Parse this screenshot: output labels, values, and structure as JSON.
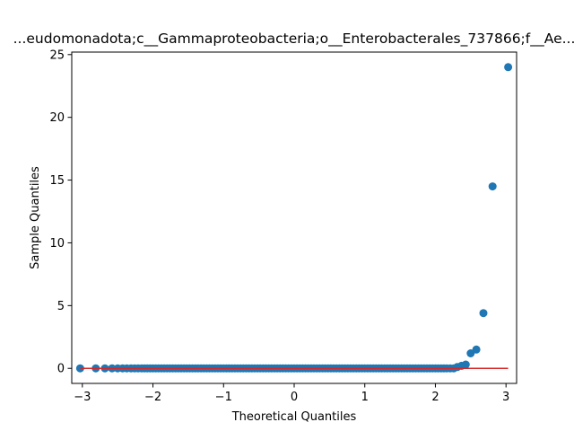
{
  "chart_data": {
    "type": "scatter",
    "title": "...eudomonadota;c__Gammaproteobacteria;o__Enterobacterales_737866;f__Ae...",
    "xlabel": "Theoretical Quantiles",
    "ylabel": "Sample Quantiles",
    "xlim": [
      -3.15,
      3.15
    ],
    "ylim": [
      -1.2,
      25.2
    ],
    "xticks": [
      -3,
      -2,
      -1,
      0,
      1,
      2,
      3
    ],
    "yticks": [
      0,
      5,
      10,
      15,
      20,
      25
    ],
    "grid": false,
    "legend": "none",
    "series": [
      {
        "kind": "points",
        "color": "#1f77b4",
        "x": [
          -3.03,
          -2.81,
          -2.68,
          -2.58,
          -2.5,
          -2.43,
          -2.37,
          -2.31,
          -2.26,
          -2.21,
          -2.16,
          -2.12,
          -2.08,
          -2.04,
          -2.0,
          -1.96,
          -1.92,
          -1.88,
          -1.84,
          -1.8,
          -1.76,
          -1.72,
          -1.68,
          -1.64,
          -1.6,
          -1.56,
          -1.52,
          -1.48,
          -1.44,
          -1.4,
          -1.36,
          -1.32,
          -1.28,
          -1.24,
          -1.2,
          -1.16,
          -1.12,
          -1.08,
          -1.04,
          -1.0,
          -0.96,
          -0.92,
          -0.88,
          -0.84,
          -0.8,
          -0.76,
          -0.72,
          -0.68,
          -0.64,
          -0.6,
          -0.56,
          -0.52,
          -0.48,
          -0.44,
          -0.4,
          -0.36,
          -0.32,
          -0.28,
          -0.24,
          -0.2,
          -0.16,
          -0.12,
          -0.08,
          -0.04,
          0.0,
          0.04,
          0.08,
          0.12,
          0.16,
          0.2,
          0.24,
          0.28,
          0.32,
          0.36,
          0.4,
          0.44,
          0.48,
          0.52,
          0.56,
          0.6,
          0.64,
          0.68,
          0.72,
          0.76,
          0.8,
          0.84,
          0.88,
          0.92,
          0.96,
          1.0,
          1.04,
          1.08,
          1.12,
          1.16,
          1.2,
          1.24,
          1.28,
          1.32,
          1.36,
          1.4,
          1.44,
          1.48,
          1.52,
          1.56,
          1.6,
          1.64,
          1.68,
          1.72,
          1.76,
          1.8,
          1.84,
          1.88,
          1.92,
          1.96,
          2.0,
          2.04,
          2.08,
          2.12,
          2.16,
          2.21,
          2.26,
          2.31,
          2.37,
          2.43,
          2.5,
          2.58,
          2.68,
          2.81,
          3.03
        ],
        "y": [
          0,
          0,
          0,
          0,
          0,
          0,
          0,
          0,
          0,
          0,
          0,
          0,
          0,
          0,
          0,
          0,
          0,
          0,
          0,
          0,
          0,
          0,
          0,
          0,
          0,
          0,
          0,
          0,
          0,
          0,
          0,
          0,
          0,
          0,
          0,
          0,
          0,
          0,
          0,
          0,
          0,
          0,
          0,
          0,
          0,
          0,
          0,
          0,
          0,
          0,
          0,
          0,
          0,
          0,
          0,
          0,
          0,
          0,
          0,
          0,
          0,
          0,
          0,
          0,
          0,
          0,
          0,
          0,
          0,
          0,
          0,
          0,
          0,
          0,
          0,
          0,
          0,
          0,
          0,
          0,
          0,
          0,
          0,
          0,
          0,
          0,
          0,
          0,
          0,
          0,
          0,
          0,
          0,
          0,
          0,
          0,
          0,
          0,
          0,
          0,
          0,
          0,
          0,
          0,
          0,
          0,
          0,
          0,
          0,
          0,
          0,
          0,
          0,
          0,
          0,
          0,
          0,
          0,
          0,
          0,
          0,
          0.1,
          0.2,
          0.3,
          1.2,
          1.5,
          4.4,
          14.5,
          24.0
        ]
      },
      {
        "kind": "reference-line",
        "color": "#d62728",
        "x": [
          -3.03,
          3.03
        ],
        "y": [
          0,
          0
        ]
      }
    ]
  }
}
